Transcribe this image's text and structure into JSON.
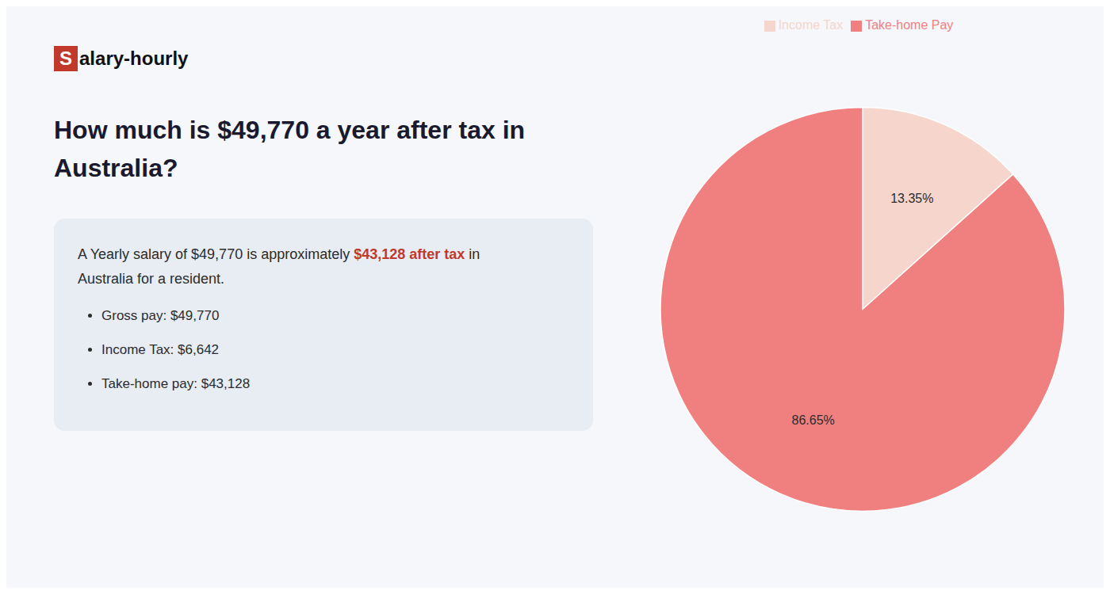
{
  "chart_data": {
    "type": "pie",
    "title": "How much is $49,770 a year after tax in Australia?",
    "annotations": [
      "S",
      "alary-hourly",
      "A Yearly salary of $49,770 is approximately ",
      "$43,128 after tax",
      " in",
      "Australia for a resident.",
      "Gross pay: $49,770",
      "Income Tax: $6,642",
      "Take-home pay: $43,128"
    ],
    "categories": [
      "Income Tax",
      "Take-home Pay"
    ],
    "values": [
      13.35,
      86.65
    ],
    "value_labels": [
      "13.35%",
      "86.65%"
    ],
    "colors": [
      "#f5d5cc",
      "#f08080"
    ],
    "data_labels": true,
    "legend": "top"
  }
}
